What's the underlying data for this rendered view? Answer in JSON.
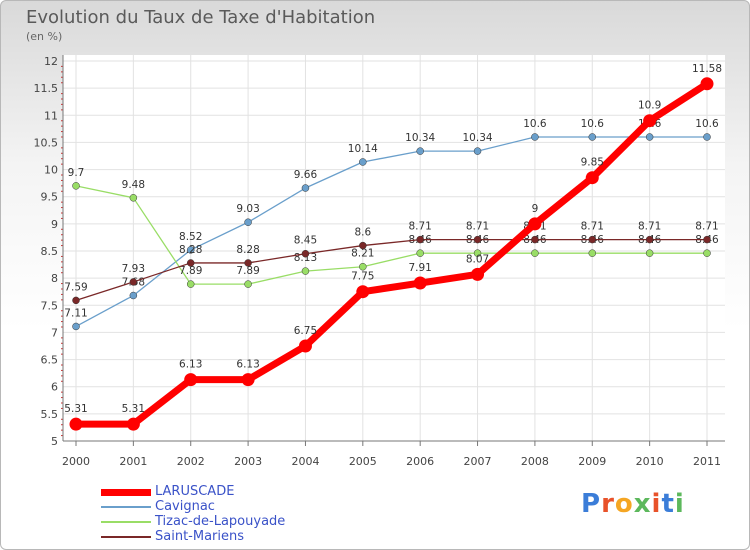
{
  "title": "Evolution du Taux de Taxe d'Habitation",
  "subtitle": "(en %)",
  "logo": [
    "P",
    "r",
    "o",
    "x",
    "i",
    "t",
    "i"
  ],
  "logo_colors": [
    "#3b7dd8",
    "#e8522a",
    "#f5a623",
    "#5cb85c",
    "#e8522a",
    "#3b7dd8",
    "#5cb85c"
  ],
  "chart_data": {
    "type": "line",
    "x": [
      "2000",
      "2001",
      "2002",
      "2003",
      "2004",
      "2005",
      "2006",
      "2007",
      "2008",
      "2009",
      "2010",
      "2011"
    ],
    "ylim": [
      5,
      12
    ],
    "yticks": [
      "5",
      "5.5",
      "6",
      "6.5",
      "7",
      "7.5",
      "8",
      "8.5",
      "9",
      "9.5",
      "10",
      "10.5",
      "11",
      "11.5",
      "12"
    ],
    "grid": true,
    "legend_position": "bottom-left",
    "series": [
      {
        "name": "Cavignac",
        "color": "#6a9fcb",
        "values": [
          7.11,
          7.68,
          8.52,
          9.03,
          9.66,
          10.14,
          10.34,
          10.34,
          10.6,
          10.6,
          10.6,
          10.6
        ],
        "labels": [
          "7.11",
          "7.68",
          "8.52",
          "9.03",
          "9.66",
          "10.14",
          "10.34",
          "10.34",
          "10.6",
          "10.6",
          "10.6",
          "10.6"
        ]
      },
      {
        "name": "Tizac-de-Lapouyade",
        "color": "#99dd66",
        "values": [
          9.7,
          9.48,
          7.89,
          7.89,
          8.13,
          8.21,
          8.46,
          8.46,
          8.46,
          8.46,
          8.46,
          8.46
        ],
        "labels": [
          "9.7",
          "9.48",
          "7.89",
          "7.89",
          "8.13",
          "8.21",
          "8.46",
          "8.46",
          "8.46",
          "8.46",
          "8.46",
          "8.46"
        ]
      },
      {
        "name": "Saint-Mariens",
        "color": "#7a2828",
        "values": [
          7.59,
          7.93,
          8.28,
          8.28,
          8.45,
          8.6,
          8.71,
          8.71,
          8.71,
          8.71,
          8.71,
          8.71
        ],
        "labels": [
          "7.59",
          "7.93",
          "8.28",
          "8.28",
          "8.45",
          "8.6",
          "8.71",
          "8.71",
          "8.71",
          "8.71",
          "8.71",
          "8.71"
        ]
      },
      {
        "name": "LARUSCADE",
        "color": "#ff0000",
        "values": [
          5.31,
          5.31,
          6.13,
          6.13,
          6.75,
          7.75,
          7.91,
          8.07,
          9,
          9.85,
          10.9,
          11.58
        ],
        "labels": [
          "5.31",
          "5.31",
          "6.13",
          "6.13",
          "6.75",
          "7.75",
          "7.91",
          "8.07",
          "9",
          "9.85",
          "10.9",
          "11.58"
        ]
      }
    ],
    "legend_order": [
      "LARUSCADE",
      "Cavignac",
      "Tizac-de-Lapouyade",
      "Saint-Mariens"
    ]
  }
}
